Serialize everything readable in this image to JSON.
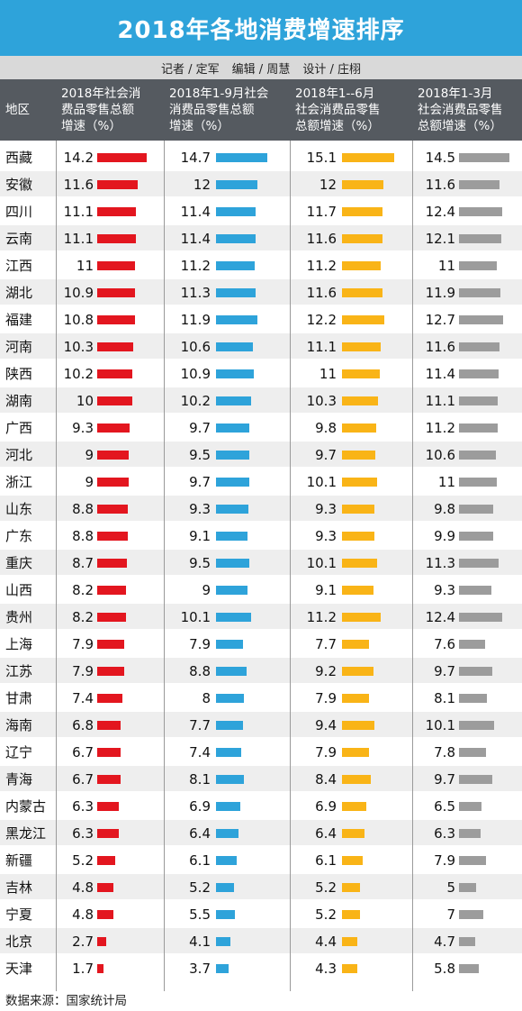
{
  "title": "2018年各地消费增速排序",
  "credits": [
    "记者 / 定军",
    "编辑 / 周慧",
    "设计 / 庄栩"
  ],
  "header": {
    "region": "地区",
    "columns": [
      [
        "2018年社会消",
        "费品零售总额",
        "增速（%）"
      ],
      [
        "2018年1-9月社会",
        "消费品零售总额",
        "增速（%）"
      ],
      [
        "2018年1--6月",
        "社会消费品零售",
        "总额增速（%）"
      ],
      [
        "2018年1-3月",
        "社会消费品零售",
        "总额增速（%）"
      ]
    ]
  },
  "source": "数据来源：国家统计局",
  "colors": {
    "series1": "#e3161f",
    "series2": "#2ea3da",
    "series3": "#f9b417",
    "series4": "#9c9c9c",
    "title_bg": "#2ea3da",
    "header_bg": "#555a60"
  },
  "chart_data": {
    "type": "bar",
    "categories": [
      "西藏",
      "安徽",
      "四川",
      "云南",
      "江西",
      "湖北",
      "福建",
      "河南",
      "陕西",
      "湖南",
      "广西",
      "河北",
      "浙江",
      "山东",
      "广东",
      "重庆",
      "山西",
      "贵州",
      "上海",
      "江苏",
      "甘肃",
      "海南",
      "辽宁",
      "青海",
      "内蒙古",
      "黑龙江",
      "新疆",
      "吉林",
      "宁夏",
      "北京",
      "天津"
    ],
    "series": [
      {
        "name": "2018年社会消费品零售总额增速（%）",
        "values": [
          14.2,
          11.6,
          11.1,
          11.1,
          11,
          10.9,
          10.8,
          10.3,
          10.2,
          10,
          9.3,
          9,
          9,
          8.8,
          8.8,
          8.7,
          8.2,
          8.2,
          7.9,
          7.9,
          7.4,
          6.8,
          6.7,
          6.7,
          6.3,
          6.3,
          5.2,
          4.8,
          4.8,
          2.7,
          1.7
        ]
      },
      {
        "name": "2018年1-9月社会消费品零售总额增速（%）",
        "values": [
          14.7,
          12,
          11.4,
          11.4,
          11.2,
          11.3,
          11.9,
          10.6,
          10.9,
          10.2,
          9.7,
          9.5,
          9.7,
          9.3,
          9.1,
          9.5,
          9,
          10.1,
          7.9,
          8.8,
          8,
          7.7,
          7.4,
          8.1,
          6.9,
          6.4,
          6.1,
          5.2,
          5.5,
          4.1,
          3.7
        ]
      },
      {
        "name": "2018年1--6月社会消费品零售总额增速（%）",
        "values": [
          15.1,
          12,
          11.7,
          11.6,
          11.2,
          11.6,
          12.2,
          11.1,
          11,
          10.3,
          9.8,
          9.7,
          10.1,
          9.3,
          9.3,
          10.1,
          9.1,
          11.2,
          7.7,
          9.2,
          7.9,
          9.4,
          7.9,
          8.4,
          6.9,
          6.4,
          6.1,
          5.2,
          5.2,
          4.4,
          4.3
        ]
      },
      {
        "name": "2018年1-3月社会消费品零售总额增速（%）",
        "values": [
          14.5,
          11.6,
          12.4,
          12.1,
          11,
          11.9,
          12.7,
          11.6,
          11.4,
          11.1,
          11.2,
          10.6,
          11,
          9.8,
          9.9,
          11.3,
          9.3,
          12.4,
          7.6,
          9.7,
          8.1,
          10.1,
          7.8,
          9.7,
          6.5,
          6.3,
          7.9,
          5,
          7,
          4.7,
          5.8
        ]
      }
    ]
  }
}
